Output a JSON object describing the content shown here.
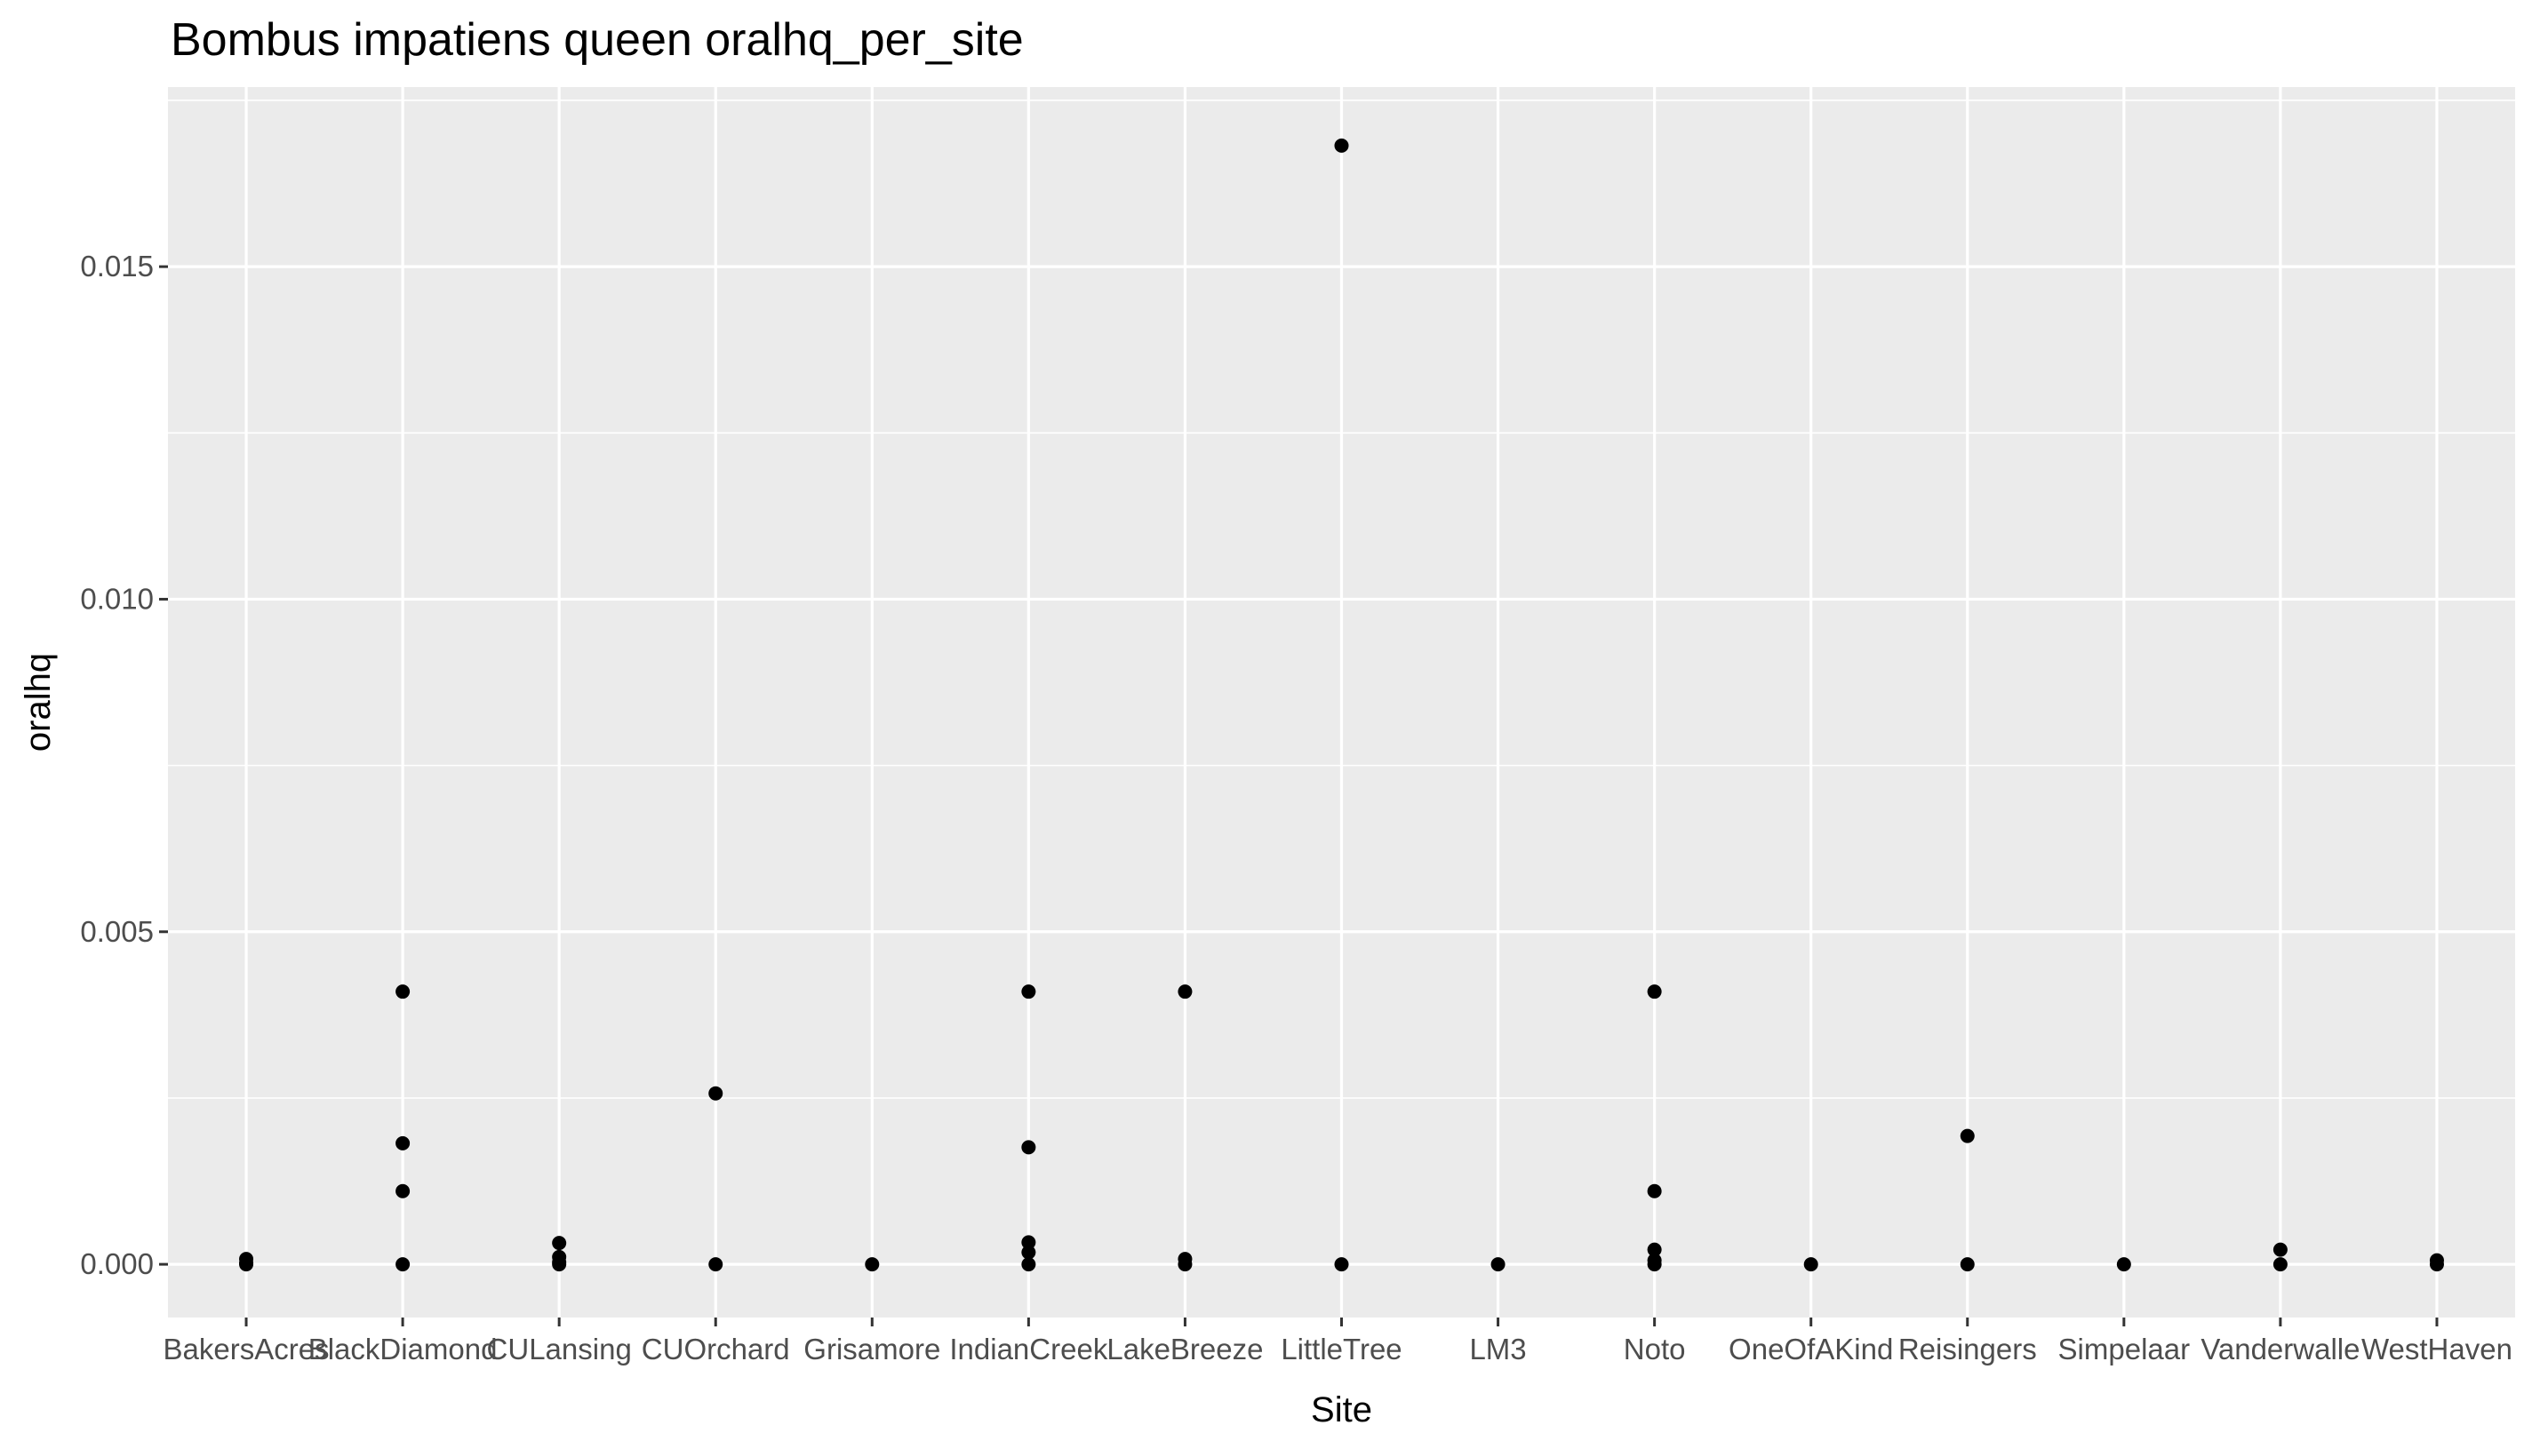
{
  "chart_data": {
    "type": "scatter",
    "title": "Bombus impatiens queen oralhq_per_site",
    "xlabel": "Site",
    "ylabel": "oralhq",
    "categories": [
      "BakersAcres",
      "BlackDiamond",
      "CULansing",
      "CUOrchard",
      "Grisamore",
      "IndianCreek",
      "LakeBreeze",
      "LittleTree",
      "LM3",
      "Noto",
      "OneOfAKind",
      "Reisingers",
      "Simpelaar",
      "Vanderwalle",
      "WestHaven"
    ],
    "yticks": [
      0.0,
      0.005,
      0.01,
      0.015
    ],
    "ytick_labels": [
      "0.000",
      "0.005",
      "0.010",
      "0.015"
    ],
    "ylim": [
      -0.0008,
      0.0177
    ],
    "grid": true,
    "points": [
      {
        "x": "BakersAcres",
        "y": 8e-05
      },
      {
        "x": "BakersAcres",
        "y": 2e-05
      },
      {
        "x": "BakersAcres",
        "y": 0.0
      },
      {
        "x": "BlackDiamond",
        "y": 0.0041
      },
      {
        "x": "BlackDiamond",
        "y": 0.00182
      },
      {
        "x": "BlackDiamond",
        "y": 0.0011
      },
      {
        "x": "BlackDiamond",
        "y": 0.0
      },
      {
        "x": "CULansing",
        "y": 0.00032
      },
      {
        "x": "CULansing",
        "y": 0.00011
      },
      {
        "x": "CULansing",
        "y": 3e-05
      },
      {
        "x": "CULansing",
        "y": 0.0
      },
      {
        "x": "CUOrchard",
        "y": 0.00257
      },
      {
        "x": "CUOrchard",
        "y": 0.0
      },
      {
        "x": "Grisamore",
        "y": 0.0
      },
      {
        "x": "IndianCreek",
        "y": 0.0041
      },
      {
        "x": "IndianCreek",
        "y": 0.00176
      },
      {
        "x": "IndianCreek",
        "y": 0.00033
      },
      {
        "x": "IndianCreek",
        "y": 0.00018
      },
      {
        "x": "IndianCreek",
        "y": 0.0
      },
      {
        "x": "LakeBreeze",
        "y": 0.0041
      },
      {
        "x": "LakeBreeze",
        "y": 8e-05
      },
      {
        "x": "LakeBreeze",
        "y": 0.0
      },
      {
        "x": "LittleTree",
        "y": 0.01682
      },
      {
        "x": "LittleTree",
        "y": 0.0
      },
      {
        "x": "LM3",
        "y": 0.0
      },
      {
        "x": "Noto",
        "y": 0.0041
      },
      {
        "x": "Noto",
        "y": 0.0011
      },
      {
        "x": "Noto",
        "y": 0.00022
      },
      {
        "x": "Noto",
        "y": 6e-05
      },
      {
        "x": "Noto",
        "y": 0.0
      },
      {
        "x": "OneOfAKind",
        "y": 0.0
      },
      {
        "x": "Reisingers",
        "y": 0.00193
      },
      {
        "x": "Reisingers",
        "y": 0.0
      },
      {
        "x": "Simpelaar",
        "y": 0.0
      },
      {
        "x": "Vanderwalle",
        "y": 0.00022
      },
      {
        "x": "Vanderwalle",
        "y": 0.0
      },
      {
        "x": "WestHaven",
        "y": 6e-05
      },
      {
        "x": "WestHaven",
        "y": 0.0
      }
    ]
  }
}
